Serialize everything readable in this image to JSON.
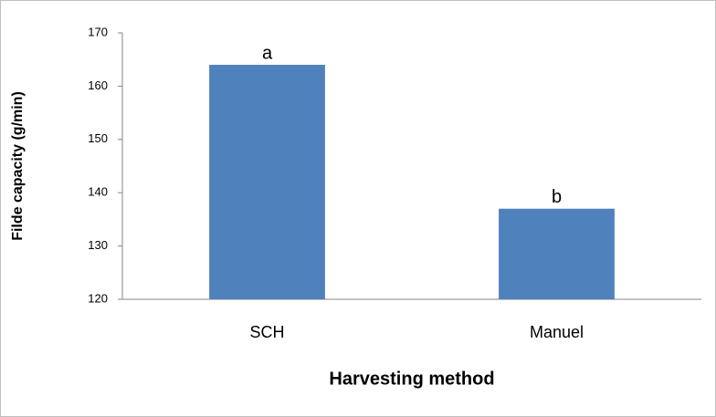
{
  "chart_data": {
    "type": "bar",
    "xlabel": "Harvesting method",
    "ylabel": "Filde capacity (g/min)",
    "categories": [
      "SCH",
      "Manuel"
    ],
    "values": [
      164,
      137
    ],
    "annotations": [
      "a",
      "b"
    ],
    "color": "#4f81bd",
    "ylim": [
      120,
      170
    ],
    "yticks": [
      120,
      130,
      140,
      150,
      160,
      170
    ],
    "grid": false
  }
}
